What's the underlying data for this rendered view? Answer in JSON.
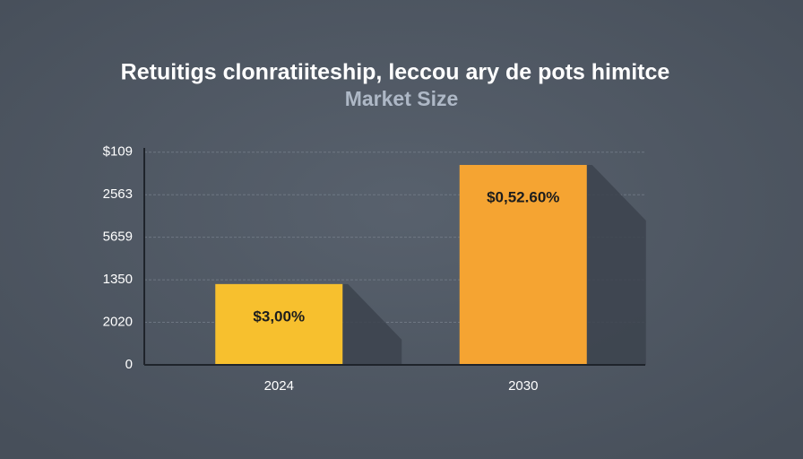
{
  "chart_data": {
    "type": "bar",
    "title": "Retuitigs clonratiiteship, leccou ary de pots himitce",
    "subtitle": "Market Size",
    "categories": [
      "2024",
      "2030"
    ],
    "values": [
      1.9,
      4.7
    ],
    "colors": [
      "#f7c02e",
      "#f5a432"
    ],
    "annotations": [
      "$3,00%",
      "$0,52.60%"
    ],
    "ylim": [
      0,
      5.1
    ],
    "yticks": [
      0,
      {
        "value": 1,
        "label": "2020"
      },
      {
        "value": 2,
        "label": "1350"
      },
      {
        "value": 3,
        "label": "5659"
      },
      {
        "value": 4,
        "label": "2563"
      },
      {
        "value": 5,
        "label": "$109"
      }
    ],
    "grid": true
  }
}
